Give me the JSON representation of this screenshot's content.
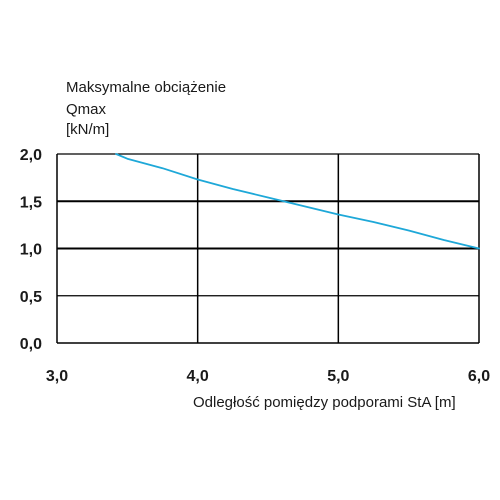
{
  "chart_data": {
    "type": "line",
    "ylabel_lines": [
      "Maksymalne obciążenie",
      "Qmax",
      "[kN/m]"
    ],
    "xlabel": "Odległość pomiędzy podporami  StA [m]",
    "xlim": [
      3.0,
      6.0
    ],
    "ylim": [
      0.0,
      2.0
    ],
    "x_ticks": [
      "3,0",
      "4,0",
      "5,0",
      "6,0"
    ],
    "y_ticks": [
      "0,0",
      "0,5",
      "1,0",
      "1,5",
      "2,0"
    ],
    "grid": true,
    "series": [
      {
        "color": "#1ea8d8",
        "x": [
          3.42,
          3.5,
          3.75,
          4.0,
          4.25,
          4.5,
          4.75,
          5.0,
          5.25,
          5.5,
          5.75,
          6.0
        ],
        "y": [
          2.0,
          1.95,
          1.85,
          1.73,
          1.63,
          1.54,
          1.45,
          1.36,
          1.28,
          1.19,
          1.09,
          1.0
        ]
      }
    ]
  }
}
